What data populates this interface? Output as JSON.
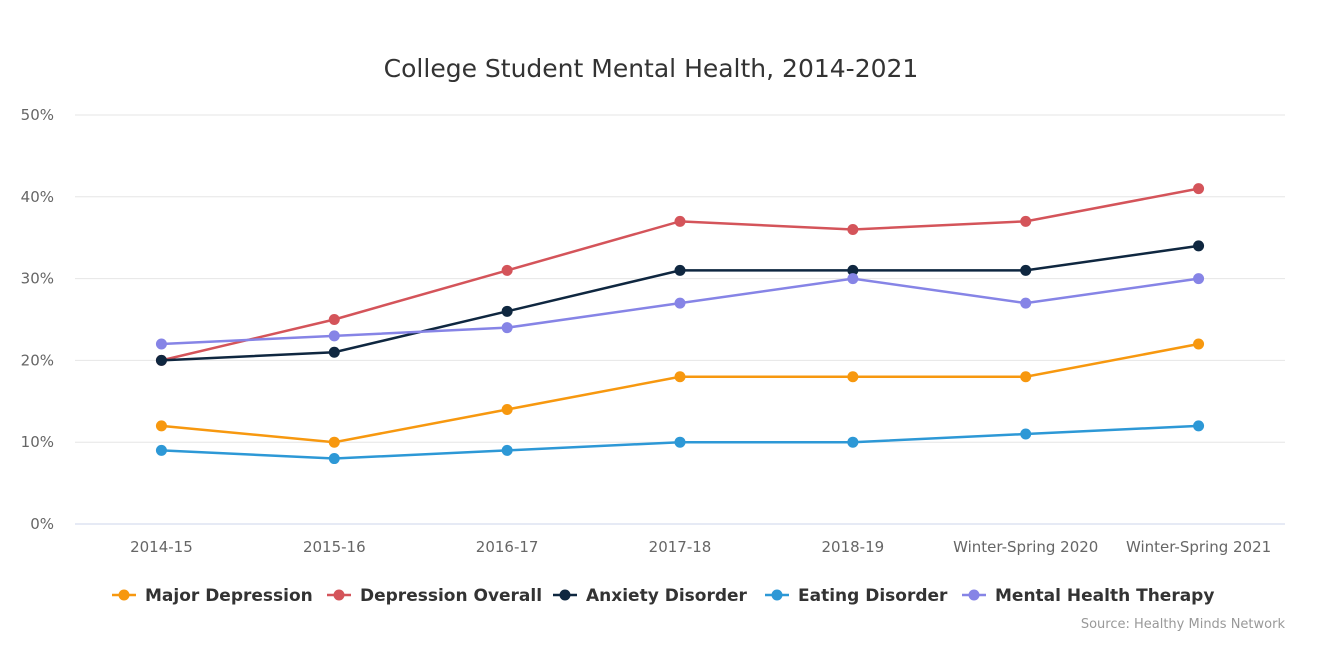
{
  "chart_data": {
    "type": "line",
    "title": "College Student Mental Health, 2014-2021",
    "xlabel": "",
    "ylabel": "",
    "ylim": [
      0,
      50
    ],
    "yticks": [
      "0%",
      "10%",
      "20%",
      "30%",
      "40%",
      "50%"
    ],
    "grid": true,
    "legend_position": "bottom",
    "categories": [
      "2014-15",
      "2015-16",
      "2016-17",
      "2017-18",
      "2018-19",
      "Winter-Spring 2020",
      "Winter-Spring 2021"
    ],
    "series": [
      {
        "name": "Major Depression",
        "color": "#f7980f",
        "values": [
          12,
          10,
          14,
          18,
          18,
          18,
          22
        ]
      },
      {
        "name": "Depression Overall",
        "color": "#d4545a",
        "values": [
          20,
          25,
          31,
          37,
          36,
          37,
          41
        ]
      },
      {
        "name": "Anxiety Disorder",
        "color": "#0f2740",
        "values": [
          20,
          21,
          26,
          31,
          31,
          31,
          34
        ]
      },
      {
        "name": "Eating Disorder",
        "color": "#2d98d6",
        "values": [
          9,
          8,
          9,
          10,
          10,
          11,
          12
        ]
      },
      {
        "name": "Mental Health Therapy",
        "color": "#8684e6",
        "values": [
          22,
          23,
          24,
          27,
          30,
          27,
          30
        ]
      }
    ],
    "source": "Source: Healthy Minds Network"
  }
}
